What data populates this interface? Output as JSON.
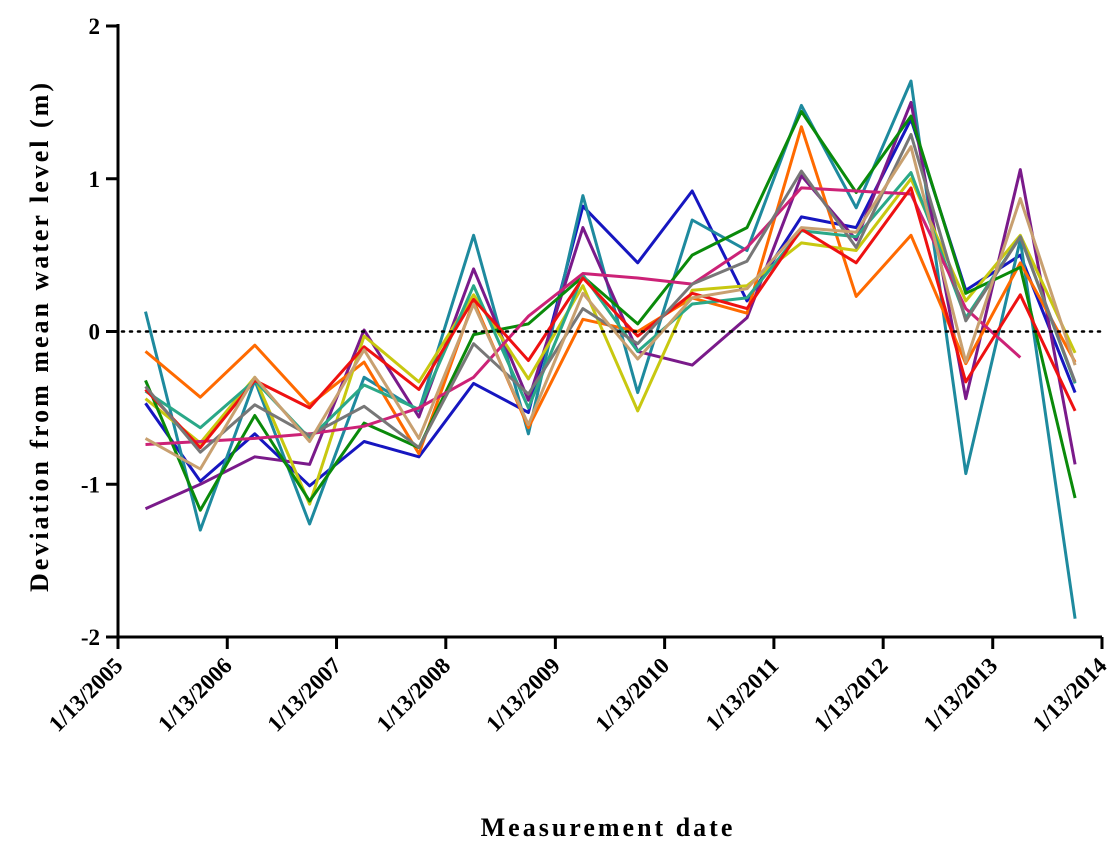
{
  "chart_data": {
    "type": "line",
    "title": "",
    "xlabel": "Measurement date",
    "ylabel": "Deviation from mean water level (m)",
    "x_range": [
      "2005-01-13",
      "2014-01-13"
    ],
    "ylim": [
      -2,
      2
    ],
    "y_ticks": [
      -2,
      -1,
      0,
      1,
      2
    ],
    "y_tick_labels": [
      "-2",
      "-1",
      "0",
      "1",
      "2"
    ],
    "x_ticks": [
      "2005-01-13",
      "2006-01-13",
      "2007-01-13",
      "2008-01-13",
      "2009-01-13",
      "2010-01-13",
      "2011-01-13",
      "2012-01-13",
      "2013-01-13",
      "2014-01-13"
    ],
    "x_tick_labels": [
      "1/13/2005",
      "1/13/2006",
      "1/13/2007",
      "1/13/2008",
      "1/13/2009",
      "1/13/2010",
      "1/13/2011",
      "1/13/2012",
      "1/13/2013",
      "1/13/2014"
    ],
    "reference_line": {
      "y": 0,
      "style": "dotted"
    },
    "grid": false,
    "legend": "none",
    "series": [
      {
        "color": "#1616c0",
        "points": [
          [
            "2005-04-15",
            -0.47
          ],
          [
            "2005-10-15",
            -0.98
          ],
          [
            "2006-04-15",
            -0.67
          ],
          [
            "2006-10-15",
            -1.01
          ],
          [
            "2007-04-15",
            -0.72
          ],
          [
            "2007-10-15",
            -0.82
          ],
          [
            "2008-04-15",
            -0.34
          ],
          [
            "2008-10-15",
            -0.53
          ],
          [
            "2009-04-15",
            0.82
          ],
          [
            "2009-10-15",
            0.45
          ],
          [
            "2010-04-15",
            0.92
          ],
          [
            "2010-10-15",
            0.2
          ],
          [
            "2011-04-15",
            0.75
          ],
          [
            "2011-10-15",
            0.68
          ],
          [
            "2012-04-15",
            1.39
          ],
          [
            "2012-10-15",
            0.27
          ],
          [
            "2013-04-15",
            0.5
          ],
          [
            "2013-10-15",
            -0.4
          ]
        ]
      },
      {
        "color": "#1e8a9e",
        "points": [
          [
            "2005-04-15",
            0.13
          ],
          [
            "2005-10-15",
            -1.3
          ],
          [
            "2006-04-15",
            -0.32
          ],
          [
            "2006-10-15",
            -1.26
          ],
          [
            "2007-04-15",
            -0.3
          ],
          [
            "2007-10-15",
            -0.52
          ],
          [
            "2008-04-15",
            0.63
          ],
          [
            "2008-10-15",
            -0.67
          ],
          [
            "2009-04-15",
            0.89
          ],
          [
            "2009-10-15",
            -0.4
          ],
          [
            "2010-04-15",
            0.73
          ],
          [
            "2010-10-15",
            0.53
          ],
          [
            "2011-04-15",
            1.48
          ],
          [
            "2011-10-15",
            0.81
          ],
          [
            "2012-04-15",
            1.64
          ],
          [
            "2012-10-15",
            -0.93
          ],
          [
            "2013-04-15",
            0.6
          ],
          [
            "2013-10-15",
            -1.88
          ]
        ]
      },
      {
        "color": "#7a1a8a",
        "points": [
          [
            "2005-04-15",
            -1.16
          ],
          [
            "2005-10-15",
            -1.0
          ],
          [
            "2006-04-15",
            -0.82
          ],
          [
            "2006-10-15",
            -0.87
          ],
          [
            "2007-04-15",
            0.01
          ],
          [
            "2007-10-15",
            -0.56
          ],
          [
            "2008-04-15",
            0.41
          ],
          [
            "2008-10-15",
            -0.45
          ],
          [
            "2009-04-15",
            0.68
          ],
          [
            "2009-10-15",
            -0.13
          ],
          [
            "2010-04-15",
            -0.22
          ],
          [
            "2010-10-15",
            0.09
          ],
          [
            "2011-04-15",
            1.02
          ],
          [
            "2011-10-15",
            0.6
          ],
          [
            "2012-04-15",
            1.5
          ],
          [
            "2012-10-15",
            -0.44
          ],
          [
            "2013-04-15",
            1.06
          ],
          [
            "2013-10-15",
            -0.87
          ]
        ]
      },
      {
        "color": "#ff6a00",
        "points": [
          [
            "2005-04-15",
            -0.13
          ],
          [
            "2005-10-15",
            -0.43
          ],
          [
            "2006-04-15",
            -0.09
          ],
          [
            "2006-10-15",
            -0.48
          ],
          [
            "2007-04-15",
            -0.2
          ],
          [
            "2007-10-15",
            -0.8
          ],
          [
            "2008-04-15",
            0.2
          ],
          [
            "2008-10-15",
            -0.63
          ],
          [
            "2009-04-15",
            0.08
          ],
          [
            "2009-10-15",
            0.0
          ],
          [
            "2010-04-15",
            0.22
          ],
          [
            "2010-10-15",
            0.12
          ],
          [
            "2011-04-15",
            1.34
          ],
          [
            "2011-10-15",
            0.23
          ],
          [
            "2012-04-15",
            0.63
          ],
          [
            "2012-10-15",
            -0.21
          ],
          [
            "2013-04-15",
            0.45
          ],
          [
            "2013-10-15",
            -0.2
          ]
        ]
      },
      {
        "color": "#c8c810",
        "points": [
          [
            "2005-04-15",
            -0.44
          ],
          [
            "2005-10-15",
            -0.73
          ],
          [
            "2006-04-15",
            -0.3
          ],
          [
            "2006-10-15",
            -1.13
          ],
          [
            "2007-04-15",
            -0.03
          ],
          [
            "2007-10-15",
            -0.33
          ],
          [
            "2008-04-15",
            0.24
          ],
          [
            "2008-10-15",
            -0.31
          ],
          [
            "2009-04-15",
            0.3
          ],
          [
            "2009-10-15",
            -0.52
          ],
          [
            "2010-04-15",
            0.27
          ],
          [
            "2010-10-15",
            0.3
          ],
          [
            "2011-04-15",
            0.58
          ],
          [
            "2011-10-15",
            0.53
          ],
          [
            "2012-04-15",
            1.0
          ],
          [
            "2012-10-15",
            0.2
          ],
          [
            "2013-04-15",
            0.63
          ],
          [
            "2013-10-15",
            -0.14
          ]
        ]
      },
      {
        "color": "#0a8a0a",
        "points": [
          [
            "2005-04-15",
            -0.32
          ],
          [
            "2005-10-15",
            -1.17
          ],
          [
            "2006-04-15",
            -0.55
          ],
          [
            "2006-10-15",
            -1.11
          ],
          [
            "2007-04-15",
            -0.6
          ],
          [
            "2007-10-15",
            -0.76
          ],
          [
            "2008-04-15",
            -0.02
          ],
          [
            "2008-10-15",
            0.05
          ],
          [
            "2009-04-15",
            0.36
          ],
          [
            "2009-10-15",
            0.05
          ],
          [
            "2010-04-15",
            0.5
          ],
          [
            "2010-10-15",
            0.68
          ],
          [
            "2011-04-15",
            1.44
          ],
          [
            "2011-10-15",
            0.91
          ],
          [
            "2012-04-15",
            1.41
          ],
          [
            "2012-10-15",
            0.25
          ],
          [
            "2013-04-15",
            0.42
          ],
          [
            "2013-10-15",
            -1.09
          ]
        ]
      },
      {
        "color": "#2aa888",
        "points": [
          [
            "2005-04-15",
            -0.39
          ],
          [
            "2005-10-15",
            -0.63
          ],
          [
            "2006-04-15",
            -0.32
          ],
          [
            "2006-10-15",
            -0.7
          ],
          [
            "2007-04-15",
            -0.35
          ],
          [
            "2007-10-15",
            -0.51
          ],
          [
            "2008-04-15",
            0.3
          ],
          [
            "2008-10-15",
            -0.5
          ],
          [
            "2009-04-15",
            0.37
          ],
          [
            "2009-10-15",
            -0.13
          ],
          [
            "2010-04-15",
            0.18
          ],
          [
            "2010-10-15",
            0.22
          ],
          [
            "2011-04-15",
            0.66
          ],
          [
            "2011-10-15",
            0.62
          ],
          [
            "2012-04-15",
            1.04
          ],
          [
            "2012-10-15",
            0.09
          ],
          [
            "2013-04-15",
            0.62
          ],
          [
            "2013-10-15",
            -0.34
          ]
        ]
      },
      {
        "color": "#cc2277",
        "points": [
          [
            "2005-04-15",
            -0.74
          ],
          [
            "2005-10-15",
            -0.72
          ],
          [
            "2006-04-15",
            -0.7
          ],
          [
            "2006-10-15",
            -0.67
          ],
          [
            "2007-04-15",
            -0.62
          ],
          [
            "2007-10-15",
            -0.5
          ],
          [
            "2008-04-15",
            -0.3
          ],
          [
            "2008-10-15",
            0.1
          ],
          [
            "2009-04-15",
            0.38
          ],
          [
            "2009-10-15",
            0.35
          ],
          [
            "2010-04-15",
            0.31
          ],
          [
            "2010-10-15",
            0.55
          ],
          [
            "2011-04-15",
            0.94
          ],
          [
            "2011-10-15",
            0.92
          ],
          [
            "2012-04-15",
            0.9
          ],
          [
            "2012-10-15",
            0.15
          ],
          [
            "2013-04-15",
            -0.17
          ]
        ]
      },
      {
        "color": "#ee1111",
        "points": [
          [
            "2005-04-15",
            -0.38
          ],
          [
            "2005-10-15",
            -0.76
          ],
          [
            "2006-04-15",
            -0.32
          ],
          [
            "2006-10-15",
            -0.5
          ],
          [
            "2007-04-15",
            -0.1
          ],
          [
            "2007-10-15",
            -0.38
          ],
          [
            "2008-04-15",
            0.21
          ],
          [
            "2008-10-15",
            -0.19
          ],
          [
            "2009-04-15",
            0.35
          ],
          [
            "2009-10-15",
            -0.03
          ],
          [
            "2010-04-15",
            0.25
          ],
          [
            "2010-10-15",
            0.15
          ],
          [
            "2011-04-15",
            0.67
          ],
          [
            "2011-10-15",
            0.45
          ],
          [
            "2012-04-15",
            0.94
          ],
          [
            "2012-10-15",
            -0.33
          ],
          [
            "2013-04-15",
            0.24
          ],
          [
            "2013-10-15",
            -0.52
          ]
        ]
      },
      {
        "color": "#777777",
        "points": [
          [
            "2005-04-15",
            -0.36
          ],
          [
            "2005-10-15",
            -0.79
          ],
          [
            "2006-04-15",
            -0.48
          ],
          [
            "2006-10-15",
            -0.68
          ],
          [
            "2007-04-15",
            -0.49
          ],
          [
            "2007-10-15",
            -0.76
          ],
          [
            "2008-04-15",
            -0.08
          ],
          [
            "2008-10-15",
            -0.41
          ],
          [
            "2009-04-15",
            0.15
          ],
          [
            "2009-10-15",
            -0.08
          ],
          [
            "2010-04-15",
            0.31
          ],
          [
            "2010-10-15",
            0.46
          ],
          [
            "2011-04-15",
            1.05
          ],
          [
            "2011-10-15",
            0.55
          ],
          [
            "2012-04-15",
            1.29
          ],
          [
            "2012-10-15",
            0.07
          ],
          [
            "2013-04-15",
            0.62
          ],
          [
            "2013-10-15",
            -0.33
          ]
        ]
      },
      {
        "color": "#c8a070",
        "points": [
          [
            "2005-04-15",
            -0.7
          ],
          [
            "2005-10-15",
            -0.9
          ],
          [
            "2006-04-15",
            -0.3
          ],
          [
            "2006-10-15",
            -0.72
          ],
          [
            "2007-04-15",
            -0.12
          ],
          [
            "2007-10-15",
            -0.7
          ],
          [
            "2008-04-15",
            0.18
          ],
          [
            "2008-10-15",
            -0.61
          ],
          [
            "2009-04-15",
            0.25
          ],
          [
            "2009-10-15",
            -0.18
          ],
          [
            "2010-04-15",
            0.22
          ],
          [
            "2010-10-15",
            0.28
          ],
          [
            "2011-04-15",
            0.68
          ],
          [
            "2011-10-15",
            0.65
          ],
          [
            "2012-04-15",
            1.21
          ],
          [
            "2012-10-15",
            -0.2
          ],
          [
            "2013-04-15",
            0.87
          ],
          [
            "2013-10-15",
            -0.22
          ]
        ]
      }
    ]
  }
}
